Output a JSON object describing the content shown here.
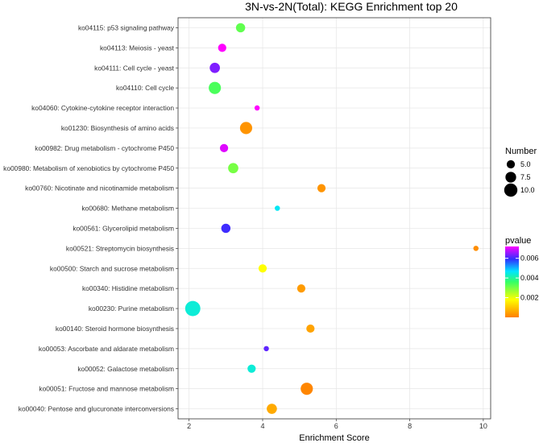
{
  "chart_data": {
    "type": "scatter",
    "title": "3N-vs-2N(Total): KEGG Enrichment top 20",
    "xlabel": "Enrichment Score",
    "ylabel": "",
    "xlim": [
      1.7,
      10.2
    ],
    "xticks": [
      2,
      4,
      6,
      8,
      10
    ],
    "grid": true,
    "categories": [
      "ko04115: p53 signaling pathway",
      "ko04113: Meiosis - yeast",
      "ko04111: Cell cycle - yeast",
      "ko04110: Cell cycle",
      "ko04060: Cytokine-cytokine receptor interaction",
      "ko01230: Biosynthesis of amino acids",
      "ko00982: Drug metabolism - cytochrome P450",
      "ko00980: Metabolism of xenobiotics by cytochrome P450",
      "ko00760: Nicotinate and nicotinamide metabolism",
      "ko00680: Methane metabolism",
      "ko00561: Glycerolipid metabolism",
      "ko00521: Streptomycin biosynthesis",
      "ko00500: Starch and sucrose metabolism",
      "ko00340: Histidine metabolism",
      "ko00230: Purine metabolism",
      "ko00140: Steroid hormone biosynthesis",
      "ko00053: Ascorbate and aldarate metabolism",
      "ko00052: Galactose metabolism",
      "ko00051: Fructose and mannose metabolism",
      "ko00040: Pentose and glucuronate interconversions"
    ],
    "points": [
      {
        "x": 3.4,
        "number": 6,
        "pvalue": 0.0032
      },
      {
        "x": 2.9,
        "number": 5,
        "pvalue": 0.0072
      },
      {
        "x": 2.7,
        "number": 7,
        "pvalue": 0.0064
      },
      {
        "x": 2.7,
        "number": 9,
        "pvalue": 0.0034
      },
      {
        "x": 3.85,
        "number": 2,
        "pvalue": 0.0072
      },
      {
        "x": 3.55,
        "number": 9,
        "pvalue": 0.0003
      },
      {
        "x": 2.95,
        "number": 5,
        "pvalue": 0.007
      },
      {
        "x": 3.2,
        "number": 7,
        "pvalue": 0.003
      },
      {
        "x": 5.6,
        "number": 5,
        "pvalue": 0.0003
      },
      {
        "x": 4.4,
        "number": 2,
        "pvalue": 0.0046
      },
      {
        "x": 3.0,
        "number": 6,
        "pvalue": 0.006
      },
      {
        "x": 9.8,
        "number": 2,
        "pvalue": 0.0002
      },
      {
        "x": 4.0,
        "number": 5,
        "pvalue": 0.0018
      },
      {
        "x": 5.05,
        "number": 5,
        "pvalue": 0.0004
      },
      {
        "x": 2.1,
        "number": 12,
        "pvalue": 0.0044
      },
      {
        "x": 5.3,
        "number": 5,
        "pvalue": 0.0005
      },
      {
        "x": 4.1,
        "number": 2,
        "pvalue": 0.0062
      },
      {
        "x": 3.7,
        "number": 5,
        "pvalue": 0.0044
      },
      {
        "x": 5.2,
        "number": 9,
        "pvalue": 0.0001
      },
      {
        "x": 4.25,
        "number": 7,
        "pvalue": 0.0006
      }
    ],
    "legend_size": {
      "title": "Number",
      "entries": [
        5.0,
        7.5,
        10.0
      ],
      "labels": [
        "5.0",
        "7.5",
        "10.0"
      ]
    },
    "legend_color": {
      "title": "pvalue",
      "range": [
        0,
        0.0072
      ],
      "ticks": [
        "0.006",
        "0.004",
        "0.002"
      ],
      "tick_values": [
        0.006,
        0.004,
        0.002
      ]
    },
    "colors": {
      "panel_bg": "#ffffff",
      "grid": "#e5e5e5",
      "border": "#333333"
    }
  }
}
